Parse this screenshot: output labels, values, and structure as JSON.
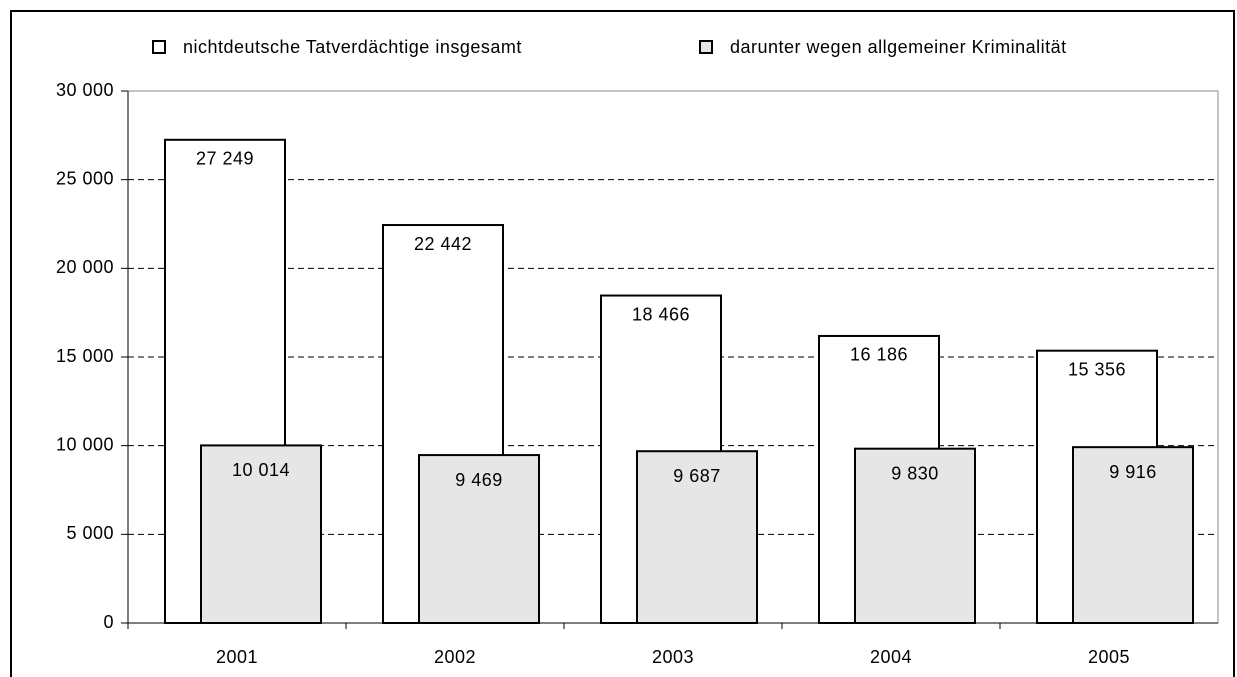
{
  "chart_data": {
    "type": "bar",
    "categories": [
      "2001",
      "2002",
      "2003",
      "2004",
      "2005"
    ],
    "series": [
      {
        "name": "nichtdeutsche Tatverdächtige insgesamt",
        "color": "#ffffff",
        "values": [
          27249,
          22442,
          18466,
          16186,
          15356
        ],
        "value_labels": [
          "27 249",
          "22 442",
          "18 466",
          "16 186",
          "15 356"
        ]
      },
      {
        "name": "darunter wegen allgemeiner Kriminalität",
        "color": "#e6e6e6",
        "values": [
          10014,
          9469,
          9687,
          9830,
          9916
        ],
        "value_labels": [
          "10 014",
          "9 469",
          "9 687",
          "9 830",
          "9 916"
        ]
      }
    ],
    "ylim": [
      0,
      30000
    ],
    "yticks": [
      0,
      {
        "value": 5000,
        "label": "5 000"
      },
      {
        "value": 10000,
        "label": "10 000"
      },
      {
        "value": 15000,
        "label": "15 000"
      },
      {
        "value": 20000,
        "label": "20 000"
      },
      {
        "value": 25000,
        "label": "25 000"
      },
      {
        "value": 30000,
        "label": "30 000"
      }
    ],
    "grid": true,
    "legend": "top"
  }
}
